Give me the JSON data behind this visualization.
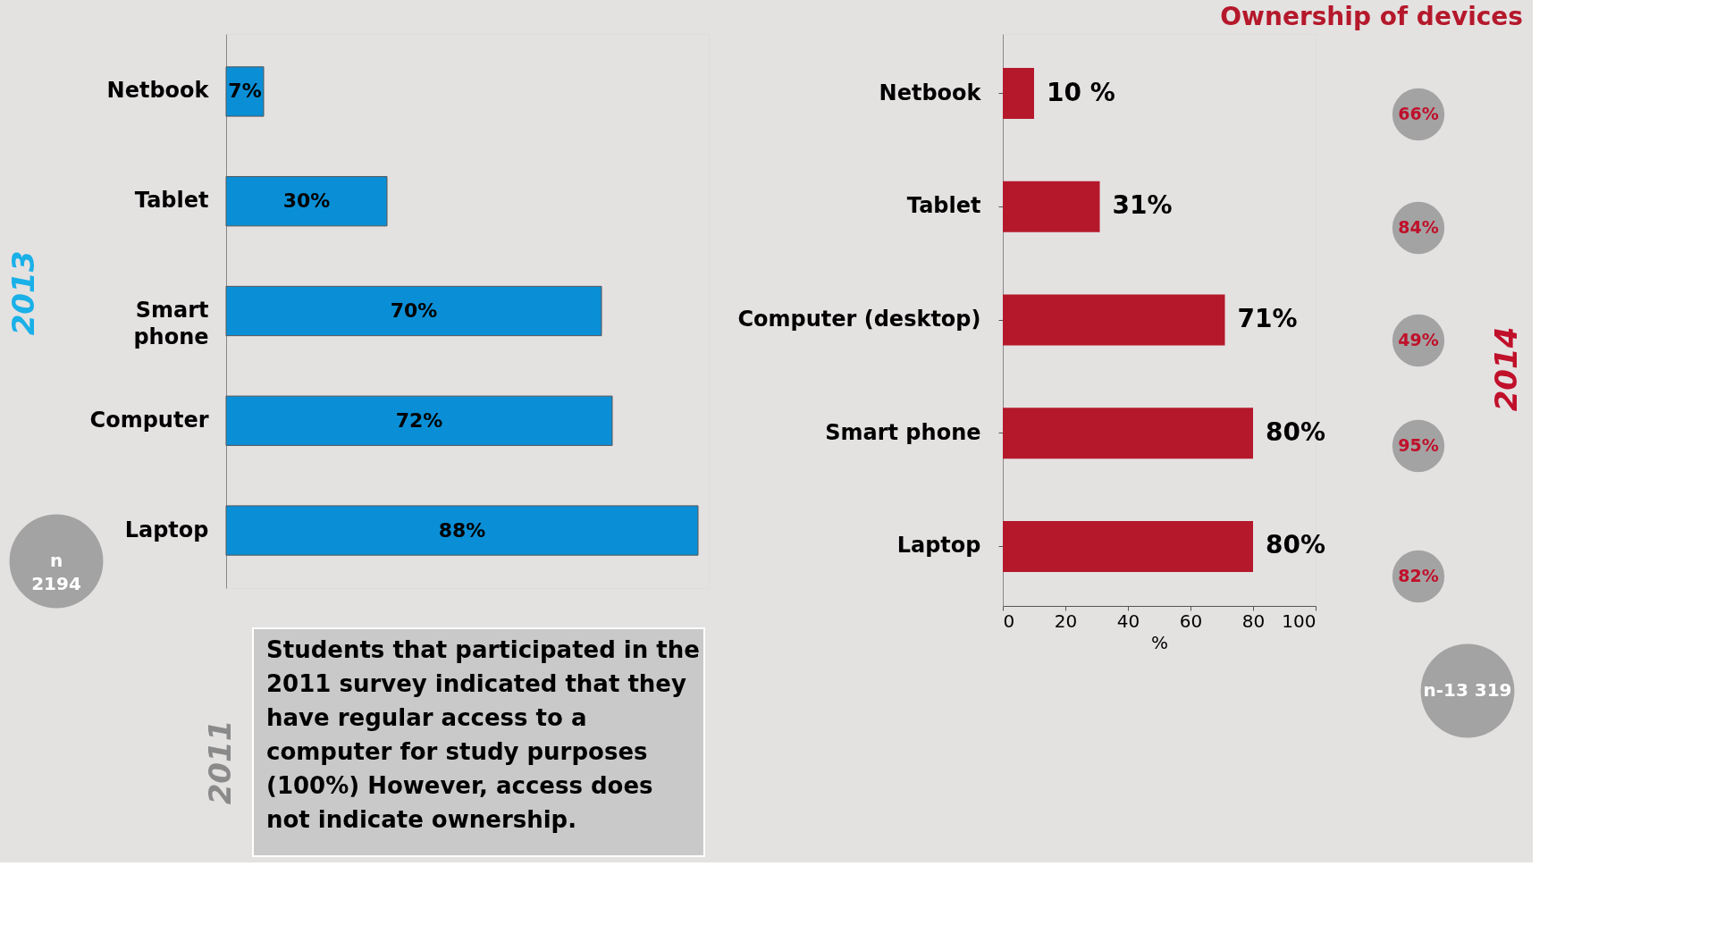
{
  "chart_data": [
    {
      "type": "bar",
      "orientation": "horizontal",
      "categories": [
        "Netbook",
        "Tablet",
        "Smart\nphone",
        "Computer",
        "Laptop"
      ],
      "values": [
        7,
        30,
        70,
        72,
        88
      ],
      "value_labels": [
        "7%",
        "30%",
        "70%",
        "72%",
        "88%"
      ],
      "color": "#0a8fd6",
      "grid": false,
      "annotations": [
        "2013",
        "n\n2194",
        "2011",
        "Students that participated in the\n2011 survey indicated that they\nhave regular access to a\ncomputer for study purposes\n(100%) However, access does\nnot indicate ownership."
      ]
    },
    {
      "type": "bar",
      "orientation": "horizontal",
      "title": "Ownership of devices",
      "categories": [
        "Netbook",
        "Tablet",
        "Computer (desktop)",
        "Smart phone",
        "Laptop"
      ],
      "values": [
        10,
        31,
        71,
        80,
        80
      ],
      "value_labels": [
        "10 %",
        "31%",
        "71%",
        "80%",
        "80%"
      ],
      "color": "#b5182b",
      "xlim": [
        0,
        100
      ],
      "xticks": [
        0,
        20,
        40,
        60,
        80,
        100
      ],
      "xlabel": "%",
      "grid": false,
      "annotations": [
        "66%",
        "84%",
        "49%",
        "95%",
        "82%",
        "2014",
        "n-13 319"
      ]
    }
  ]
}
